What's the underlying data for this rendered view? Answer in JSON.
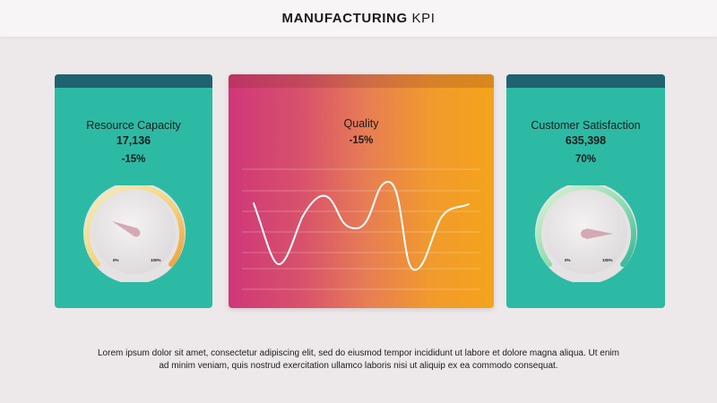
{
  "header": {
    "title_bold": "MANUFACTURING",
    "title_light": "KPI"
  },
  "cards": {
    "resource": {
      "title": "Resource Capacity",
      "value": "17,136",
      "percent": "-15%",
      "gauge_min_label": "0%",
      "gauge_max_label": "100%"
    },
    "quality": {
      "title": "Quality",
      "percent": "-15%"
    },
    "customer": {
      "title": "Customer Satisfaction",
      "value": "635,398",
      "percent": "70%",
      "gauge_min_label": "0%",
      "gauge_max_label": "100%"
    }
  },
  "description": "Lorem ipsum dolor sit amet, consectetur adipiscing elit, sed do eiusmod tempor incididunt ut labore et dolore magna aliqua. Ut enim ad minim veniam, quis nostrud exercitation ullamco laboris nisi ut aliquip ex ea commodo consequat.",
  "colors": {
    "background": "#ede8ea",
    "teal_card": "#2dbaa5",
    "card_cap": "#1e636f",
    "gradient_start": "#cf3779",
    "gradient_end": "#f4a41a",
    "needle": "#d4a9b3"
  }
}
